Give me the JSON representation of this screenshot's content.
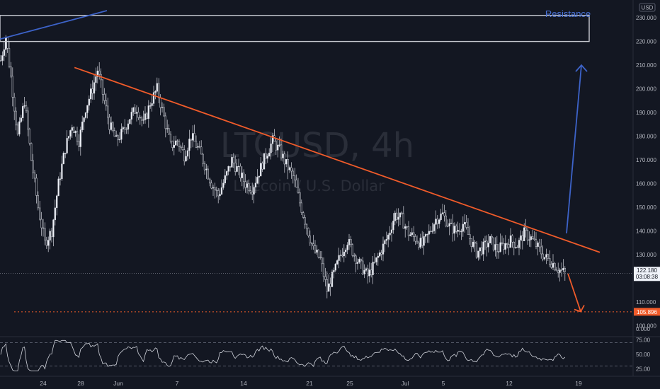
{
  "symbol": "LTCUSD, 4h",
  "pair_name": "Litecoin / U.S. Dollar",
  "currency_badge": "USD",
  "resistance_label": "Resistance",
  "colors": {
    "background": "#131722",
    "candle": "#d1d4dc",
    "trendline": "#f05b2a",
    "arrow_up": "#3d63c9",
    "support_line": "#f05b2a",
    "resistance_box": "#c8cbd2",
    "rsi": "#d1d4dc"
  },
  "icons": {
    "currency_badge": "currency-badge-icon"
  },
  "price_label": {
    "value": "122.180",
    "countdown": "03:08:38"
  },
  "support_label": {
    "value": "105.896"
  },
  "chart_data": {
    "type": "candlestick",
    "title": "LTCUSD, 4h",
    "subtitle": "Litecoin / U.S. Dollar",
    "ylabel": "USD",
    "ylim": [
      96,
      236
    ],
    "y_ticks": [
      100,
      110,
      120,
      130,
      140,
      150,
      160,
      170,
      180,
      190,
      200,
      210,
      220,
      230
    ],
    "y_tick_labels": [
      "100.000",
      "110.000",
      "120.000",
      "130.000",
      "140.000",
      "150.000",
      "160.000",
      "170.000",
      "180.000",
      "190.000",
      "200.000",
      "210.000",
      "220.000",
      "230.000"
    ],
    "x_ticks": [
      "24",
      "28",
      "Jun",
      "7",
      "14",
      "21",
      "25",
      "Jul",
      "5",
      "12",
      "19"
    ],
    "price_path": [
      [
        0,
        212
      ],
      [
        3,
        222
      ],
      [
        6,
        205
      ],
      [
        10,
        180
      ],
      [
        14,
        195
      ],
      [
        18,
        170
      ],
      [
        22,
        150
      ],
      [
        26,
        135
      ],
      [
        30,
        140
      ],
      [
        34,
        160
      ],
      [
        38,
        175
      ],
      [
        42,
        185
      ],
      [
        46,
        178
      ],
      [
        50,
        192
      ],
      [
        54,
        200
      ],
      [
        57,
        208
      ],
      [
        60,
        198
      ],
      [
        64,
        185
      ],
      [
        68,
        178
      ],
      [
        72,
        182
      ],
      [
        76,
        188
      ],
      [
        80,
        192
      ],
      [
        84,
        185
      ],
      [
        88,
        194
      ],
      [
        92,
        200
      ],
      [
        96,
        188
      ],
      [
        100,
        176
      ],
      [
        104,
        178
      ],
      [
        108,
        172
      ],
      [
        112,
        180
      ],
      [
        116,
        175
      ],
      [
        120,
        168
      ],
      [
        124,
        160
      ],
      [
        128,
        155
      ],
      [
        132,
        162
      ],
      [
        136,
        170
      ],
      [
        140,
        165
      ],
      [
        144,
        160
      ],
      [
        148,
        158
      ],
      [
        152,
        165
      ],
      [
        156,
        172
      ],
      [
        160,
        178
      ],
      [
        164,
        174
      ],
      [
        168,
        168
      ],
      [
        172,
        163
      ],
      [
        176,
        152
      ],
      [
        180,
        142
      ],
      [
        184,
        132
      ],
      [
        188,
        128
      ],
      [
        192,
        115
      ],
      [
        196,
        122
      ],
      [
        200,
        130
      ],
      [
        204,
        136
      ],
      [
        208,
        130
      ],
      [
        212,
        125
      ],
      [
        216,
        121
      ],
      [
        220,
        126
      ],
      [
        224,
        132
      ],
      [
        228,
        138
      ],
      [
        232,
        147
      ],
      [
        236,
        145
      ],
      [
        240,
        139
      ],
      [
        244,
        137
      ],
      [
        248,
        134
      ],
      [
        252,
        139
      ],
      [
        256,
        145
      ],
      [
        260,
        147
      ],
      [
        264,
        142
      ],
      [
        268,
        140
      ],
      [
        272,
        143
      ],
      [
        276,
        137
      ],
      [
        280,
        131
      ],
      [
        284,
        133
      ],
      [
        288,
        136
      ],
      [
        292,
        132
      ],
      [
        296,
        134
      ],
      [
        300,
        136
      ],
      [
        304,
        134
      ],
      [
        308,
        139
      ],
      [
        312,
        137
      ],
      [
        316,
        133
      ],
      [
        320,
        129
      ],
      [
        324,
        127
      ],
      [
        328,
        124
      ],
      [
        332,
        122.18
      ]
    ],
    "trendline": {
      "from": [
        28,
        209
      ],
      "to": [
        352,
        131
      ]
    },
    "resistance_zone": [
      220,
      231
    ],
    "support_level": 105.896,
    "last_price": 122.18,
    "projection_up": {
      "from": [
        322,
        139
      ],
      "to": [
        333,
        210
      ]
    },
    "projection_down": {
      "from": [
        334,
        122
      ],
      "to": [
        343,
        106
      ]
    },
    "rsi": {
      "ylim": [
        15,
        78
      ],
      "ticks": [
        25,
        50,
        75
      ],
      "tick_labels": [
        "25.00",
        "50.00",
        "75.00"
      ],
      "upper_band": 70,
      "lower_band": 30,
      "last": 40
    }
  }
}
